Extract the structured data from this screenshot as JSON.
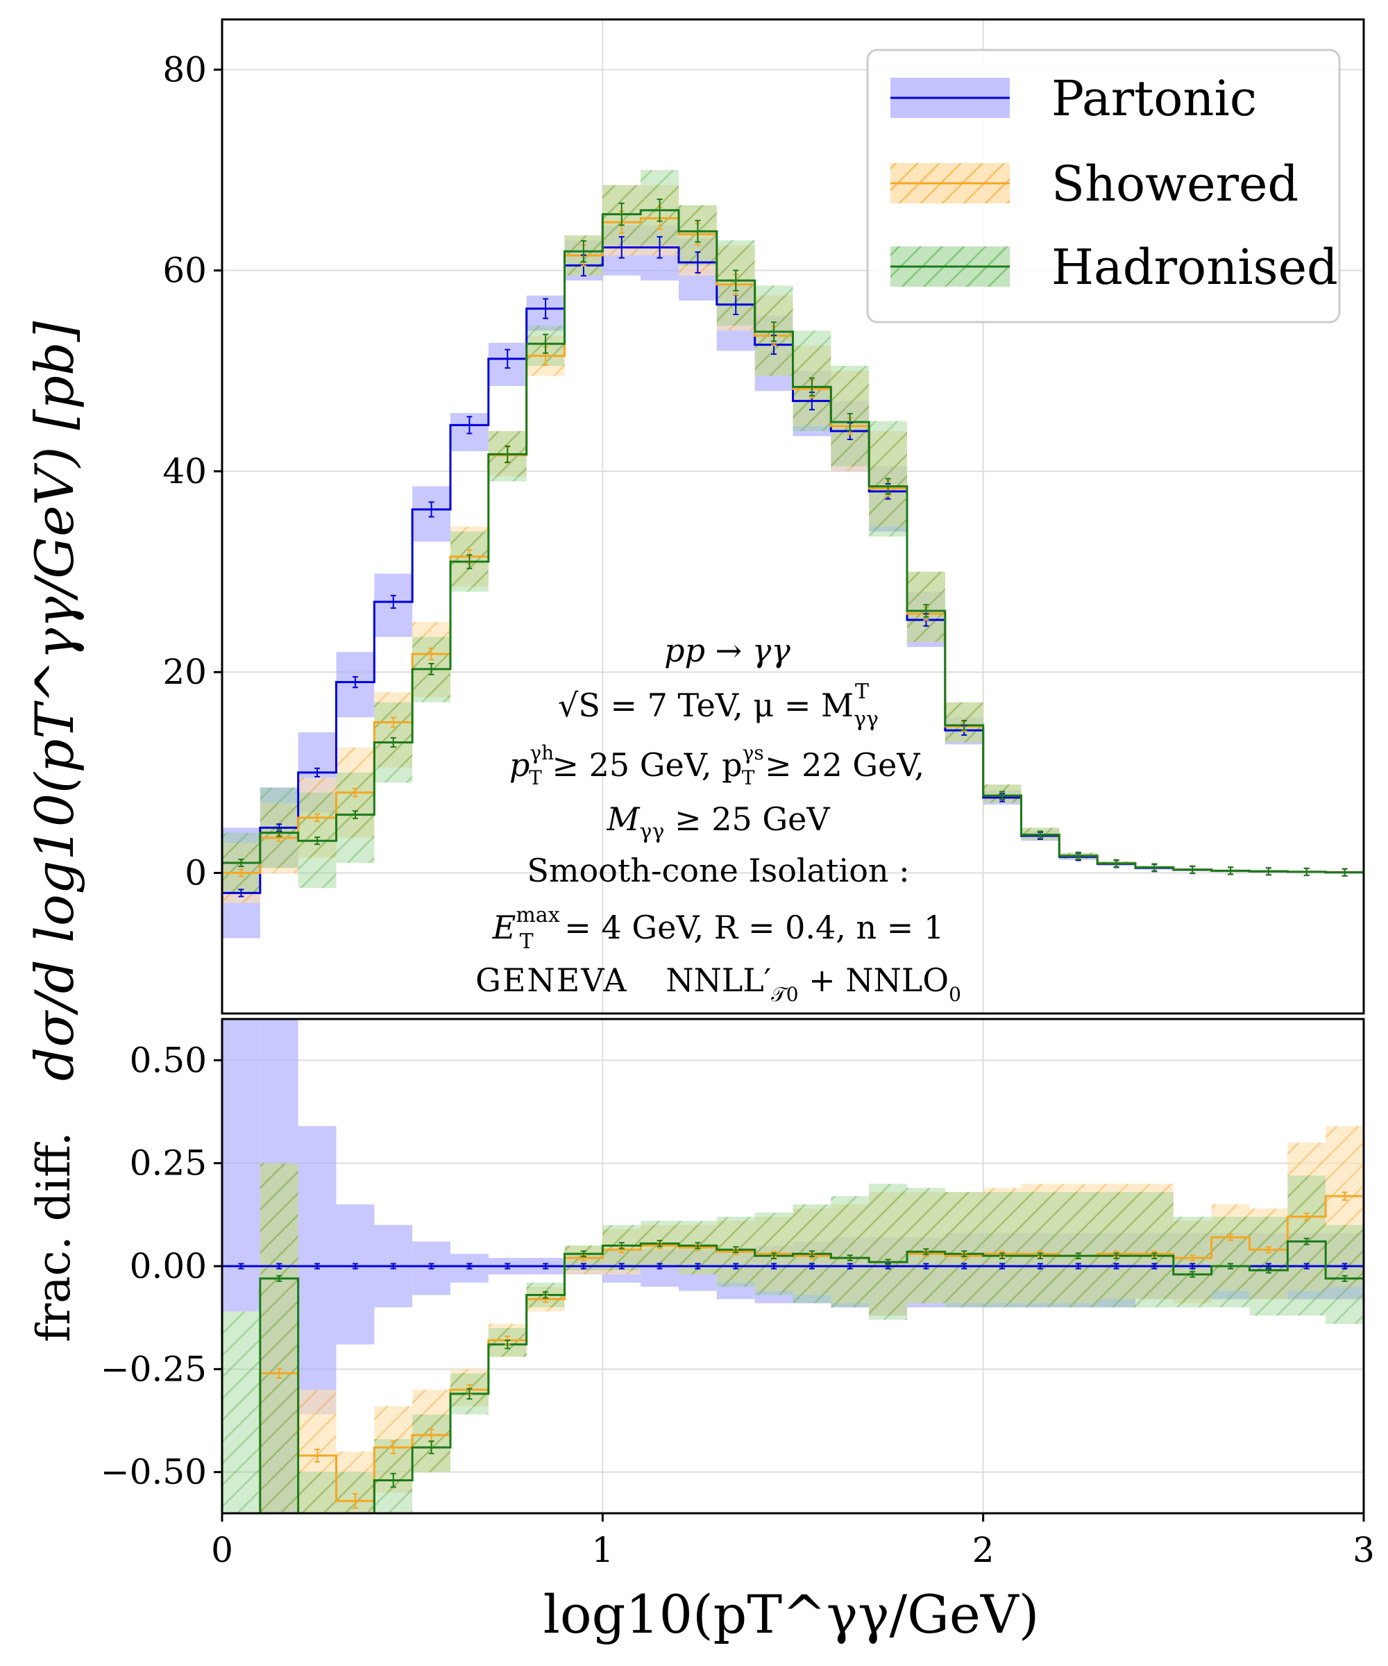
{
  "chart_data": [
    {
      "panel": "main",
      "type": "line",
      "step": true,
      "ylabel": "dσ/d log10(pT^γγ/GeV)   [pb]",
      "ylim": [
        -14,
        85
      ],
      "yticks": [
        0,
        20,
        40,
        60,
        80
      ],
      "xlim": [
        0,
        3
      ],
      "grid": true,
      "legend_position": "top-right",
      "bin_edges": [
        0,
        0.1,
        0.2,
        0.3,
        0.4,
        0.5,
        0.6,
        0.7,
        0.8,
        0.9,
        1.0,
        1.1,
        1.2,
        1.3,
        1.4,
        1.5,
        1.6,
        1.7,
        1.8,
        1.9,
        2.0,
        2.1,
        2.2,
        2.3,
        2.4,
        2.5,
        2.6,
        2.7,
        2.8,
        2.9,
        3.0
      ],
      "series": [
        {
          "name": "Partonic",
          "color": "#0000dd",
          "band_color": "#aaaaff",
          "values": [
            -2,
            4.5,
            10,
            19,
            27,
            36.2,
            44.6,
            51.2,
            56.2,
            60.5,
            62.3,
            62.3,
            60.8,
            56.6,
            52.6,
            47.0,
            44.0,
            38.0,
            25.2,
            14.2,
            7.5,
            3.7,
            1.6,
            0.9,
            0.5,
            0.3,
            0.2,
            0.15,
            0.1,
            0.05
          ],
          "band_low": [
            -6.5,
            0.5,
            6,
            15.5,
            23.5,
            33,
            42,
            48.5,
            54,
            59,
            59.5,
            59,
            57,
            52,
            48,
            43.5,
            40,
            34,
            22.5,
            12.8,
            6.8,
            3.2,
            1.3,
            0.7,
            0.35,
            0.2,
            0.12,
            0.08,
            0.05,
            0.02
          ],
          "band_high": [
            4.5,
            8.5,
            14,
            22,
            29.8,
            38.5,
            45.8,
            52.8,
            57.5,
            63,
            64.5,
            64.5,
            63.2,
            58.8,
            55.5,
            50,
            47,
            40.5,
            28,
            15.5,
            8.2,
            4.2,
            1.9,
            1.1,
            0.65,
            0.4,
            0.28,
            0.2,
            0.14,
            0.08
          ]
        },
        {
          "name": "Showered",
          "color": "#f5a623",
          "band_color": "#ffd9a0",
          "values": [
            0,
            3.5,
            5.5,
            8,
            15,
            21.8,
            31.5,
            41.6,
            51.5,
            61.5,
            64.8,
            65.2,
            63.6,
            58.6,
            53.5,
            48.2,
            44.5,
            38.3,
            25.8,
            14.6,
            7.7,
            3.8,
            1.7,
            0.95,
            0.55,
            0.33,
            0.22,
            0.16,
            0.11,
            0.06
          ],
          "band_low": [
            -3,
            0,
            1.5,
            3.5,
            10.5,
            17.5,
            28.5,
            39.5,
            49.5,
            59.5,
            61.5,
            61.5,
            59.5,
            54,
            49.5,
            44.5,
            40,
            34.5,
            23,
            13,
            7,
            3.3,
            1.4,
            0.8,
            0.4,
            0.25,
            0.15,
            0.1,
            0.07,
            0.03
          ],
          "band_high": [
            3,
            7,
            9.5,
            12.5,
            18,
            25,
            34.5,
            44,
            53.5,
            63.5,
            68.5,
            68.5,
            66.5,
            62.5,
            57.5,
            52.5,
            50,
            44,
            30,
            17,
            8.8,
            4.5,
            2,
            1.15,
            0.7,
            0.45,
            0.3,
            0.22,
            0.16,
            0.09
          ]
        },
        {
          "name": "Hadronised",
          "color": "#1a7a1a",
          "band_color": "#a8d8a0",
          "values": [
            1,
            4,
            3.2,
            5.8,
            13,
            20.3,
            31,
            41.7,
            52.7,
            61.9,
            65.6,
            66,
            63.9,
            59,
            53.9,
            48.4,
            44.9,
            38.5,
            26.1,
            14.7,
            7.7,
            3.8,
            1.7,
            0.95,
            0.55,
            0.33,
            0.22,
            0.16,
            0.11,
            0.06
          ],
          "band_low": [
            -2,
            0.5,
            -1.5,
            1,
            9,
            17,
            28,
            39,
            50.5,
            59.5,
            62.5,
            62.5,
            60.5,
            54.5,
            49.5,
            44,
            40.5,
            33.5,
            23,
            13,
            7,
            3.3,
            1.4,
            0.8,
            0.4,
            0.25,
            0.15,
            0.1,
            0.07,
            0.03
          ],
          "band_high": [
            4,
            8.5,
            8,
            10,
            17,
            23.5,
            34,
            44,
            54.5,
            63.5,
            68.5,
            70,
            66.5,
            63,
            58.5,
            54,
            50.5,
            45,
            30,
            17,
            8.8,
            4.5,
            2,
            1.15,
            0.7,
            0.45,
            0.3,
            0.22,
            0.16,
            0.09
          ]
        }
      ],
      "annotation": {
        "process": "pp → γγ",
        "energy": "√S = 7 TeV,  μ = M",
        "energy_sub": "γγ",
        "energy_sup": "T",
        "cuts1a": "p",
        "cuts1b": " ≥ 25 GeV,   p",
        "cuts1c": " ≥ 22 GeV,",
        "cuts1_sub": "T",
        "cuts1_sup1": "γh",
        "cuts1_sup2": "γs",
        "cuts2": "M",
        "cuts2_sub": "γγ",
        "cuts2_rest": " ≥ 25 GeV",
        "isolation": "Smooth-cone Isolation :",
        "iso_params": "E",
        "iso_sup": "max",
        "iso_sub": "T",
        "iso_rest": " = 4 GeV,   R = 0.4,  n = 1",
        "generator": "GENEVA",
        "accuracy": "NNLL′",
        "accuracy_sub": "𝒯0",
        "accuracy_rest": " + NNLO",
        "accuracy_rest_sub": "0"
      }
    },
    {
      "panel": "ratio",
      "type": "line",
      "step": true,
      "ylabel": "frac.  diff.",
      "ylim": [
        -0.6,
        0.6
      ],
      "yticks": [
        -0.5,
        -0.25,
        0.0,
        0.25,
        0.5
      ],
      "ytick_labels": [
        "−0.50",
        "−0.25",
        "0.00",
        "0.25",
        "0.50"
      ],
      "xlim": [
        0,
        3
      ],
      "xticks": [
        0,
        1,
        2,
        3
      ],
      "xlabel": "log10(pT^γγ/GeV)",
      "grid": true,
      "series": [
        {
          "name": "Partonic",
          "values": [
            0,
            0,
            0,
            0,
            0,
            0,
            0,
            0,
            0,
            0,
            0,
            0,
            0,
            0,
            0,
            0,
            0,
            0,
            0,
            0,
            0,
            0,
            0,
            0,
            0,
            0,
            0,
            0,
            0,
            0
          ],
          "band_low": [
            -0.11,
            -0.6,
            -0.36,
            -0.19,
            -0.1,
            -0.07,
            -0.04,
            -0.02,
            -0.02,
            -0.02,
            -0.04,
            -0.05,
            -0.06,
            -0.08,
            -0.09,
            -0.09,
            -0.1,
            -0.12,
            -0.1,
            -0.1,
            -0.1,
            -0.1,
            -0.1,
            -0.1,
            -0.08,
            -0.08,
            -0.08,
            -0.08,
            -0.08,
            -0.08
          ],
          "band_high": [
            0.6,
            0.6,
            0.34,
            0.15,
            0.1,
            0.06,
            0.03,
            0.02,
            0.02,
            0.03,
            0.04,
            0.04,
            0.04,
            0.04,
            0.05,
            0.06,
            0.07,
            0.07,
            0.07,
            0.08,
            0.08,
            0.08,
            0.08,
            0.08,
            0.08,
            0.08,
            0.08,
            0.08,
            0.08,
            0.08
          ]
        },
        {
          "name": "Showered",
          "values": [
            -0.6,
            -0.26,
            -0.46,
            -0.57,
            -0.44,
            -0.41,
            -0.3,
            -0.18,
            -0.08,
            0.02,
            0.04,
            0.05,
            0.045,
            0.035,
            0.03,
            0.025,
            0.02,
            0.01,
            0.03,
            0.025,
            0.03,
            0.03,
            0.025,
            0.03,
            0.03,
            0.02,
            0.07,
            0.04,
            0.12,
            0.17
          ],
          "band_low": [
            -0.6,
            -0.6,
            -0.6,
            -0.6,
            -0.55,
            -0.5,
            -0.34,
            -0.22,
            -0.11,
            -0.02,
            -0.02,
            0.0,
            -0.02,
            -0.04,
            -0.06,
            -0.07,
            -0.09,
            -0.12,
            -0.09,
            -0.09,
            -0.09,
            -0.09,
            -0.09,
            -0.08,
            -0.08,
            -0.09,
            -0.06,
            -0.08,
            -0.06,
            -0.05
          ],
          "band_high": [
            -0.6,
            0.25,
            -0.3,
            -0.45,
            -0.34,
            -0.3,
            -0.25,
            -0.14,
            -0.05,
            0.05,
            0.09,
            0.1,
            0.1,
            0.11,
            0.12,
            0.14,
            0.15,
            0.18,
            0.18,
            0.18,
            0.19,
            0.2,
            0.2,
            0.2,
            0.2,
            0.11,
            0.15,
            0.14,
            0.3,
            0.34
          ]
        },
        {
          "name": "Hadronised",
          "values": [
            -0.6,
            -0.03,
            -0.6,
            -0.6,
            -0.52,
            -0.44,
            -0.31,
            -0.19,
            -0.07,
            0.03,
            0.05,
            0.055,
            0.05,
            0.04,
            0.025,
            0.03,
            0.02,
            0.01,
            0.035,
            0.03,
            0.025,
            0.025,
            0.025,
            0.025,
            0.025,
            -0.02,
            0.0,
            -0.01,
            0.06,
            -0.03
          ],
          "band_low": [
            -0.6,
            -0.6,
            -0.6,
            -0.6,
            -0.6,
            -0.5,
            -0.36,
            -0.22,
            -0.1,
            -0.01,
            -0.01,
            0.0,
            -0.02,
            -0.05,
            -0.07,
            -0.09,
            -0.1,
            -0.13,
            -0.09,
            -0.1,
            -0.1,
            -0.1,
            -0.1,
            -0.1,
            -0.1,
            -0.1,
            -0.1,
            -0.12,
            -0.12,
            -0.14
          ],
          "band_high": [
            -0.11,
            0.25,
            -0.5,
            -0.5,
            -0.42,
            -0.36,
            -0.26,
            -0.15,
            -0.04,
            0.05,
            0.1,
            0.11,
            0.11,
            0.12,
            0.13,
            0.15,
            0.17,
            0.2,
            0.19,
            0.18,
            0.18,
            0.18,
            0.18,
            0.18,
            0.18,
            0.12,
            0.12,
            0.12,
            0.22,
            0.1
          ]
        }
      ]
    }
  ]
}
